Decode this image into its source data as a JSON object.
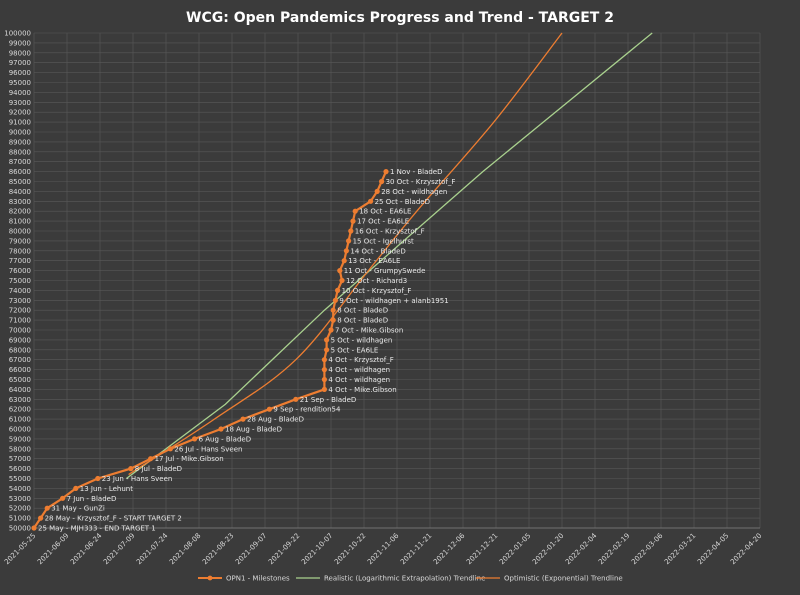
{
  "chart_data": {
    "type": "line",
    "title": "WCG: Open Pandemics Progress and Trend - TARGET 2",
    "ylim": [
      50000,
      100000
    ],
    "y_step": 1000,
    "xlim": [
      "2021-05-25",
      "2022-04-20"
    ],
    "x_ticks": [
      "2021-05-25",
      "2021-06-09",
      "2021-06-24",
      "2021-07-09",
      "2021-07-24",
      "2021-08-08",
      "2021-08-23",
      "2021-09-07",
      "2021-09-22",
      "2021-10-07",
      "2021-10-22",
      "2021-11-06",
      "2021-11-21",
      "2021-12-06",
      "2021-12-21",
      "2022-01-05",
      "2022-01-20",
      "2022-02-04",
      "2022-02-19",
      "2022-03-06",
      "2022-03-21",
      "2022-04-05",
      "2022-04-20"
    ],
    "grid": true,
    "legend_position": "bottom",
    "colors": {
      "milestones": "#ed7d31",
      "realistic": "#a9d18e",
      "optimistic": "#ed7d31",
      "background": "#3b3b3b",
      "grid": "#595959"
    },
    "series": [
      {
        "name": "OPN1 - Milestones",
        "points": [
          {
            "x": "2021-05-25",
            "y": 50000,
            "label": "25 May - MJH333 - END TARGET 1"
          },
          {
            "x": "2021-05-28",
            "y": 51000,
            "label": "28 May - Krzysztof_F - START TARGET 2"
          },
          {
            "x": "2021-05-31",
            "y": 52000,
            "label": "31 May - GunZi"
          },
          {
            "x": "2021-06-07",
            "y": 53000,
            "label": "7 Jun - BladeD"
          },
          {
            "x": "2021-06-13",
            "y": 54000,
            "label": "13 Jun - Lehunt"
          },
          {
            "x": "2021-06-23",
            "y": 55000,
            "label": "23 Jun - Hans Sveen"
          },
          {
            "x": "2021-07-08",
            "y": 56000,
            "label": "8 Jul - BladeD"
          },
          {
            "x": "2021-07-17",
            "y": 57000,
            "label": "17 Jul - Mike.Gibson"
          },
          {
            "x": "2021-07-26",
            "y": 58000,
            "label": "26 Jul - Hans Sveen"
          },
          {
            "x": "2021-08-06",
            "y": 59000,
            "label": "6 Aug - BladeD"
          },
          {
            "x": "2021-08-18",
            "y": 60000,
            "label": "18 Aug - BladeD"
          },
          {
            "x": "2021-08-28",
            "y": 61000,
            "label": "28 Aug - BladeD"
          },
          {
            "x": "2021-09-09",
            "y": 62000,
            "label": "9 Sep - rendition54"
          },
          {
            "x": "2021-09-21",
            "y": 63000,
            "label": "21 Sep - BladeD"
          },
          {
            "x": "2021-10-04",
            "y": 64000,
            "label": "4 Oct - Mike.Gibson"
          },
          {
            "x": "2021-10-04",
            "y": 65000,
            "label": "4 Oct - wildhagen"
          },
          {
            "x": "2021-10-04",
            "y": 66000,
            "label": "4 Oct - wildhagen"
          },
          {
            "x": "2021-10-04",
            "y": 67000,
            "label": "4 Oct - Krzysztof_F"
          },
          {
            "x": "2021-10-05",
            "y": 68000,
            "label": "5 Oct - EA6LE"
          },
          {
            "x": "2021-10-05",
            "y": 69000,
            "label": "5 Oct - wildhagen"
          },
          {
            "x": "2021-10-07",
            "y": 70000,
            "label": "7 Oct - Mike.Gibson"
          },
          {
            "x": "2021-10-08",
            "y": 71000,
            "label": "8 Oct - BladeD"
          },
          {
            "x": "2021-10-08",
            "y": 72000,
            "label": "8 Oct - BladeD"
          },
          {
            "x": "2021-10-09",
            "y": 73000,
            "label": "9 Oct - wildhagen + alanb1951"
          },
          {
            "x": "2021-10-10",
            "y": 74000,
            "label": "10 Oct - Krzysztof_F"
          },
          {
            "x": "2021-10-12",
            "y": 75000,
            "label": "12 Oct - Richard3"
          },
          {
            "x": "2021-10-11",
            "y": 76000,
            "label": "11 Oct - GrumpySwede"
          },
          {
            "x": "2021-10-13",
            "y": 77000,
            "label": "13 Oct - EA6LE"
          },
          {
            "x": "2021-10-14",
            "y": 78000,
            "label": "14 Oct - BladeD"
          },
          {
            "x": "2021-10-15",
            "y": 79000,
            "label": "15 Oct - Igelhurst"
          },
          {
            "x": "2021-10-16",
            "y": 80000,
            "label": "16 Oct - Krzysztof_F"
          },
          {
            "x": "2021-10-17",
            "y": 81000,
            "label": "17 Oct - EA6LE"
          },
          {
            "x": "2021-10-18",
            "y": 82000,
            "label": "18 Oct - EA6LE"
          },
          {
            "x": "2021-10-25",
            "y": 83000,
            "label": "25 Oct - BladeD"
          },
          {
            "x": "2021-10-28",
            "y": 84000,
            "label": "28 Oct - wildhagen"
          },
          {
            "x": "2021-10-30",
            "y": 85000,
            "label": "30 Oct - Krzysztof_F"
          },
          {
            "x": "2021-11-01",
            "y": 86000,
            "label": "1 Nov - BladeD"
          }
        ]
      },
      {
        "name": "Realistic (Logarithmic Extrapolation) Trendline",
        "points": [
          {
            "x": "2021-07-06",
            "y": 55000
          },
          {
            "x": "2021-08-20",
            "y": 62500
          },
          {
            "x": "2021-10-04",
            "y": 72000
          },
          {
            "x": "2021-12-15",
            "y": 86000
          },
          {
            "x": "2022-03-02",
            "y": 100000
          }
        ]
      },
      {
        "name": "Optimistic (Exponential) Trendline",
        "points": [
          {
            "x": "2021-07-07",
            "y": 55400
          },
          {
            "x": "2021-08-15",
            "y": 61000
          },
          {
            "x": "2021-09-21",
            "y": 67000
          },
          {
            "x": "2021-10-24",
            "y": 76000
          },
          {
            "x": "2021-11-15",
            "y": 82000
          },
          {
            "x": "2021-12-20",
            "y": 91000
          },
          {
            "x": "2022-01-20",
            "y": 100000
          }
        ]
      }
    ]
  }
}
